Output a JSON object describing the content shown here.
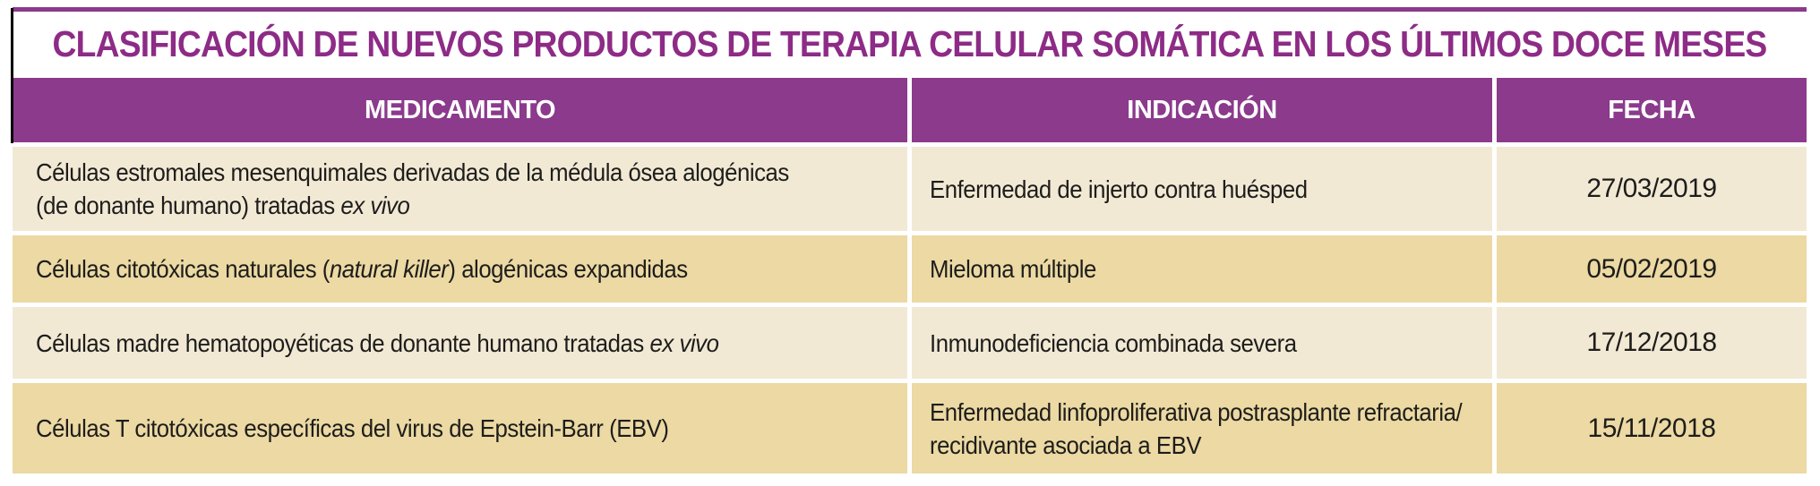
{
  "colors": {
    "header_bg": "#8b3a8c",
    "title_text": "#8d2b86",
    "row_light": "#f2e9d5",
    "row_dark": "#ecd9a3",
    "body_text": "#1d1d1b",
    "top_rule": "#8b3a8c",
    "left_rule": "#000000"
  },
  "title": "CLASIFICACIÓN DE NUEVOS PRODUCTOS DE TERAPIA CELULAR SOMÁTICA EN LOS ÚLTIMOS DOCE MESES",
  "table": {
    "columns": [
      "MEDICAMENTO",
      "INDICACIÓN",
      "FECHA"
    ],
    "rows": [
      {
        "shade": "light",
        "medicamento": [
          [
            {
              "t": "Células estromales mesenquimales derivadas de la médula ósea alogénicas"
            }
          ],
          [
            {
              "t": "(de donante humano) tratadas "
            },
            {
              "t": "ex vivo",
              "i": true
            }
          ]
        ],
        "indicacion": [
          [
            {
              "t": "Enfermedad de injerto contra huésped"
            }
          ]
        ],
        "fecha": "27/03/2019"
      },
      {
        "shade": "dark",
        "medicamento": [
          [
            {
              "t": "Células citotóxicas naturales ("
            },
            {
              "t": "natural killer",
              "i": true
            },
            {
              "t": ") alogénicas expandidas"
            }
          ]
        ],
        "indicacion": [
          [
            {
              "t": "Mieloma múltiple"
            }
          ]
        ],
        "fecha": "05/02/2019"
      },
      {
        "shade": "light",
        "medicamento": [
          [
            {
              "t": "Células madre hematopoyéticas de donante humano tratadas "
            },
            {
              "t": "ex vivo",
              "i": true
            }
          ]
        ],
        "indicacion": [
          [
            {
              "t": "Inmunodeficiencia combinada severa"
            }
          ]
        ],
        "fecha": "17/12/2018"
      },
      {
        "shade": "dark",
        "medicamento": [
          [
            {
              "t": "Células T citotóxicas específicas del virus de Epstein-Barr (EBV)"
            }
          ]
        ],
        "indicacion": [
          [
            {
              "t": "Enfermedad linfoproliferativa postrasplante refractaria/"
            }
          ],
          [
            {
              "t": "recidivante asociada a EBV"
            }
          ]
        ],
        "fecha": "15/11/2018"
      }
    ]
  }
}
